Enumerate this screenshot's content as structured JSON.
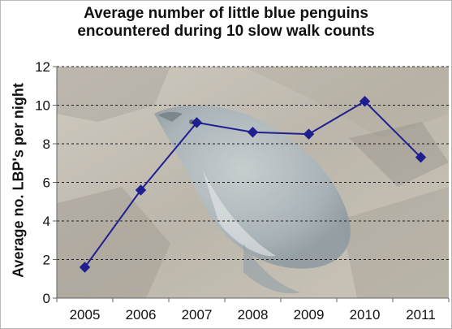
{
  "chart_data": {
    "type": "line",
    "title_lines": [
      "Average number of little blue penguins",
      "encountered during 10 slow walk counts"
    ],
    "xlabel": "",
    "ylabel": "Average no. LBP's per night",
    "categories": [
      "2005",
      "2006",
      "2007",
      "2008",
      "2009",
      "2010",
      "2011"
    ],
    "series": [
      {
        "values": [
          1.6,
          5.6,
          9.1,
          8.6,
          8.5,
          10.2,
          7.3
        ]
      }
    ],
    "ylim": [
      0,
      12
    ],
    "yticks": [
      0,
      2,
      4,
      6,
      8,
      10,
      12
    ],
    "grid": "horizontal dashed",
    "legend": "none",
    "background": "photo of a little blue penguin on rocks",
    "line_color": "#1f1f8f",
    "marker": "diamond"
  }
}
